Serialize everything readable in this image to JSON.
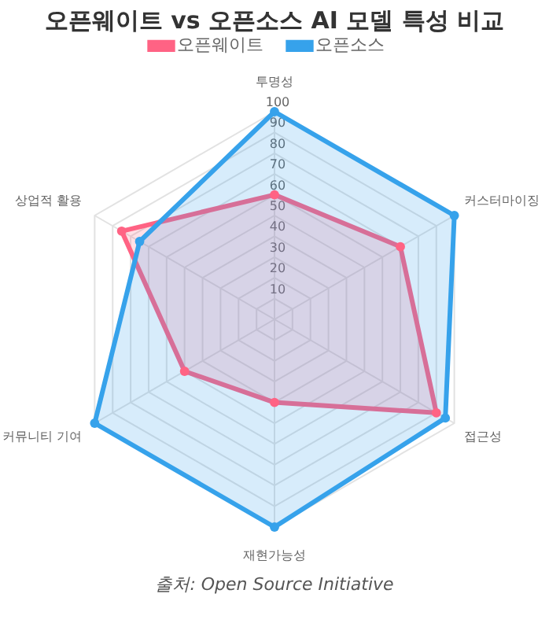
{
  "chart_data": {
    "type": "radar",
    "title": "오픈웨이트 vs 오픈소스 AI 모델 특성 비교",
    "categories": [
      "투명성",
      "커스터마이징",
      "접근성",
      "재현가능성",
      "커뮤니티 기여",
      "상업적 활용"
    ],
    "series": [
      {
        "name": "오픈웨이트",
        "color": "#ff6384",
        "values": [
          60,
          70,
          90,
          40,
          50,
          85
        ]
      },
      {
        "name": "오픈소스",
        "color": "#36a2eb",
        "values": [
          100,
          100,
          95,
          100,
          100,
          75
        ]
      }
    ],
    "ylim": [
      0,
      100
    ],
    "yticks": [
      10,
      20,
      30,
      40,
      50,
      60,
      70,
      80,
      90,
      100
    ],
    "grid": true,
    "legend": "top",
    "marker": "circle",
    "annotations": [
      "출처: Open Source Initiative"
    ]
  }
}
